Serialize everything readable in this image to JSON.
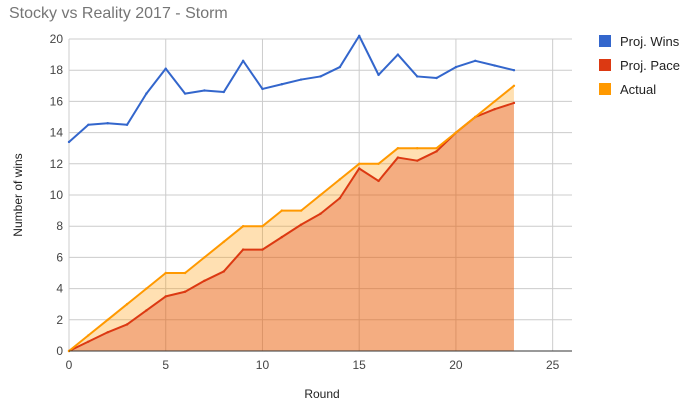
{
  "chart_data": {
    "type": "line",
    "title": "Stocky vs Reality 2017 - Storm",
    "xlabel": "Round",
    "ylabel": "Number of wins",
    "xlim": [
      0,
      26
    ],
    "ylim": [
      0,
      20
    ],
    "x_ticks": [
      0,
      5,
      10,
      15,
      20,
      25
    ],
    "y_ticks": [
      0,
      2,
      4,
      6,
      8,
      10,
      12,
      14,
      16,
      18,
      20
    ],
    "grid": true,
    "legend_position": "right",
    "x": [
      0,
      1,
      2,
      3,
      4,
      5,
      6,
      7,
      8,
      9,
      10,
      11,
      12,
      13,
      14,
      15,
      16,
      17,
      18,
      19,
      20,
      21,
      22,
      23
    ],
    "series": [
      {
        "name": "Proj. Wins",
        "color": "#3366cc",
        "values": [
          13.4,
          14.5,
          14.6,
          14.5,
          16.5,
          18.1,
          16.5,
          16.7,
          16.6,
          18.6,
          16.8,
          17.1,
          17.4,
          17.6,
          18.2,
          20.2,
          17.7,
          19.0,
          17.6,
          17.5,
          18.2,
          18.6,
          18.3,
          18.0
        ]
      },
      {
        "name": "Proj. Pace",
        "color": "#dc3912",
        "area": true,
        "values": [
          0,
          0.6,
          1.2,
          1.7,
          2.6,
          3.5,
          3.8,
          4.5,
          5.1,
          6.5,
          6.5,
          7.3,
          8.1,
          8.8,
          9.8,
          11.7,
          10.9,
          12.4,
          12.2,
          12.8,
          14.0,
          15.0,
          15.5,
          15.9
        ]
      },
      {
        "name": "Actual",
        "color": "#ff9900",
        "area": true,
        "values": [
          0,
          1,
          2,
          3,
          4,
          5,
          5,
          6,
          7,
          8,
          8,
          9,
          9,
          10,
          11,
          12,
          12,
          13,
          13,
          13,
          14,
          15,
          16,
          17
        ]
      }
    ]
  }
}
